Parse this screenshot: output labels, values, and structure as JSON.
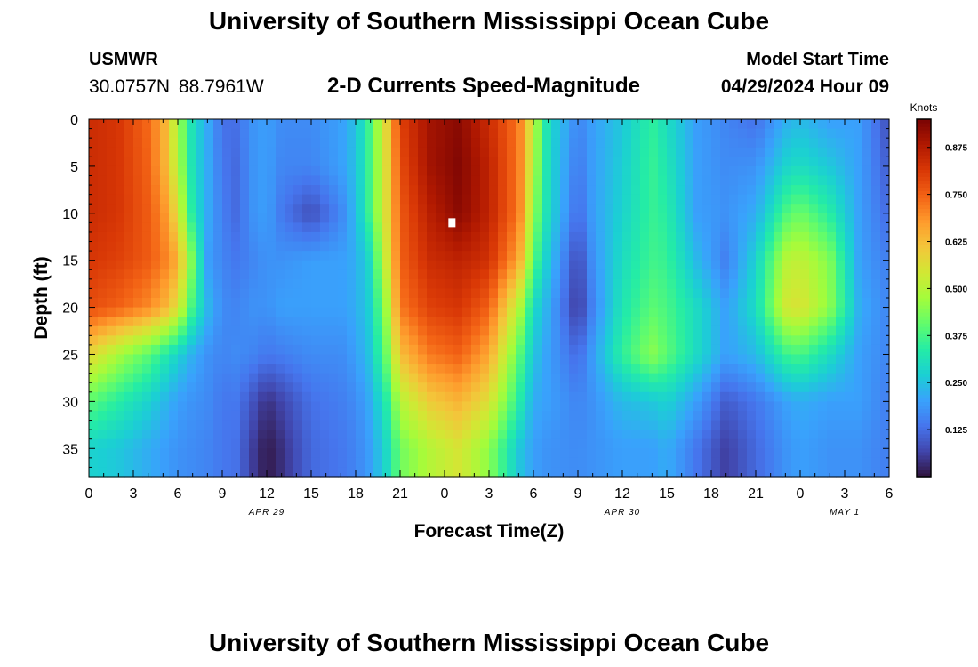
{
  "header": {
    "title": "University of Southern Mississippi Ocean Cube",
    "station": "USMWR",
    "coords": "30.0757N  88.7961W",
    "subtitle": "2-D Currents Speed-Magnitude",
    "model_start_label": "Model Start Time",
    "model_start_time": "04/29/2024 Hour 09"
  },
  "footer": {
    "title": "University of Southern Mississippi Ocean Cube"
  },
  "chart_data": {
    "type": "heatmap",
    "xlabel": "Forecast Time(Z)",
    "ylabel": "Depth (ft)",
    "x_range_hours": [
      0,
      54
    ],
    "x_tick_labels": [
      "0",
      "3",
      "6",
      "9",
      "12",
      "15",
      "18",
      "21",
      "0",
      "3",
      "6",
      "9",
      "12",
      "15",
      "18",
      "21",
      "0",
      "3",
      "6"
    ],
    "x_date_labels": [
      {
        "label": "APR 29",
        "hour": 12
      },
      {
        "label": "APR 30",
        "hour": 36
      },
      {
        "label": "MAY 1",
        "hour": 51
      }
    ],
    "y_range": [
      0,
      38
    ],
    "y_ticks": [
      0,
      5,
      10,
      15,
      20,
      25,
      30,
      35
    ],
    "colorbar": {
      "title": "Knots",
      "range": [
        0,
        0.95
      ],
      "ticks": [
        "0.125",
        "0.250",
        "0.375",
        "0.500",
        "0.625",
        "0.750",
        "0.875"
      ],
      "colors": [
        "#30123b",
        "#4145ab",
        "#4675ed",
        "#39a2fc",
        "#1bcfd4",
        "#24eca6",
        "#61fc6c",
        "#a4fc3b",
        "#d1e834",
        "#f3c63a",
        "#fe9b2d",
        "#f36315",
        "#d93806",
        "#b11901",
        "#7a0403"
      ]
    },
    "marker": {
      "hour": 24.5,
      "depth": 11
    },
    "profiles": [
      {
        "hour": 0,
        "values": [
          0.84,
          0.84,
          0.84,
          0.82,
          0.78,
          0.58,
          0.4,
          0.28
        ]
      },
      {
        "hour": 2,
        "values": [
          0.82,
          0.82,
          0.82,
          0.8,
          0.75,
          0.48,
          0.34,
          0.26
        ]
      },
      {
        "hour": 4,
        "values": [
          0.74,
          0.75,
          0.76,
          0.76,
          0.7,
          0.4,
          0.28,
          0.22
        ]
      },
      {
        "hour": 5,
        "values": [
          0.66,
          0.66,
          0.7,
          0.72,
          0.65,
          0.34,
          0.24,
          0.2
        ]
      },
      {
        "hour": 6,
        "values": [
          0.48,
          0.5,
          0.56,
          0.65,
          0.56,
          0.28,
          0.2,
          0.18
        ]
      },
      {
        "hour": 7,
        "values": [
          0.3,
          0.3,
          0.32,
          0.42,
          0.36,
          0.22,
          0.18,
          0.17
        ]
      },
      {
        "hour": 8,
        "values": [
          0.22,
          0.22,
          0.22,
          0.2,
          0.24,
          0.18,
          0.17,
          0.16
        ]
      },
      {
        "hour": 9,
        "values": [
          0.13,
          0.14,
          0.15,
          0.16,
          0.17,
          0.16,
          0.14,
          0.14
        ]
      },
      {
        "hour": 10,
        "values": [
          0.13,
          0.12,
          0.12,
          0.14,
          0.16,
          0.17,
          0.14,
          0.13
        ]
      },
      {
        "hour": 11,
        "values": [
          0.18,
          0.18,
          0.18,
          0.16,
          0.18,
          0.16,
          0.09,
          0.06
        ]
      },
      {
        "hour": 12,
        "values": [
          0.2,
          0.2,
          0.2,
          0.18,
          0.18,
          0.14,
          0.04,
          0.01
        ]
      },
      {
        "hour": 13,
        "values": [
          0.17,
          0.16,
          0.14,
          0.18,
          0.2,
          0.15,
          0.07,
          0.04
        ]
      },
      {
        "hour": 15,
        "values": [
          0.17,
          0.16,
          0.08,
          0.2,
          0.2,
          0.17,
          0.13,
          0.12
        ]
      },
      {
        "hour": 17,
        "values": [
          0.2,
          0.2,
          0.16,
          0.2,
          0.2,
          0.17,
          0.15,
          0.14
        ]
      },
      {
        "hour": 18,
        "values": [
          0.25,
          0.25,
          0.24,
          0.22,
          0.22,
          0.2,
          0.17,
          0.16
        ]
      },
      {
        "hour": 19,
        "values": [
          0.38,
          0.38,
          0.38,
          0.3,
          0.28,
          0.26,
          0.22,
          0.2
        ]
      },
      {
        "hour": 20,
        "values": [
          0.56,
          0.55,
          0.55,
          0.52,
          0.45,
          0.4,
          0.32,
          0.28
        ]
      },
      {
        "hour": 21,
        "values": [
          0.8,
          0.78,
          0.76,
          0.75,
          0.72,
          0.62,
          0.5,
          0.42
        ]
      },
      {
        "hour": 23,
        "values": [
          0.9,
          0.9,
          0.87,
          0.84,
          0.8,
          0.72,
          0.6,
          0.5
        ]
      },
      {
        "hour": 25,
        "values": [
          0.93,
          0.94,
          0.93,
          0.86,
          0.82,
          0.75,
          0.64,
          0.55
        ]
      },
      {
        "hour": 27,
        "values": [
          0.84,
          0.86,
          0.86,
          0.83,
          0.75,
          0.66,
          0.56,
          0.45
        ]
      },
      {
        "hour": 29,
        "values": [
          0.72,
          0.72,
          0.72,
          0.66,
          0.5,
          0.4,
          0.34,
          0.26
        ]
      },
      {
        "hour": 30,
        "values": [
          0.52,
          0.5,
          0.46,
          0.4,
          0.3,
          0.26,
          0.22,
          0.2
        ]
      },
      {
        "hour": 31,
        "values": [
          0.3,
          0.3,
          0.3,
          0.26,
          0.22,
          0.2,
          0.2,
          0.18
        ]
      },
      {
        "hour": 33,
        "values": [
          0.16,
          0.14,
          0.12,
          0.07,
          0.05,
          0.12,
          0.16,
          0.17
        ]
      },
      {
        "hour": 34,
        "values": [
          0.2,
          0.2,
          0.2,
          0.18,
          0.16,
          0.2,
          0.18,
          0.18
        ]
      },
      {
        "hour": 36,
        "values": [
          0.26,
          0.27,
          0.28,
          0.3,
          0.32,
          0.35,
          0.24,
          0.2
        ]
      },
      {
        "hour": 38,
        "values": [
          0.35,
          0.36,
          0.36,
          0.37,
          0.4,
          0.45,
          0.26,
          0.2
        ]
      },
      {
        "hour": 39,
        "values": [
          0.3,
          0.32,
          0.34,
          0.36,
          0.38,
          0.4,
          0.28,
          0.22
        ]
      },
      {
        "hour": 41,
        "values": [
          0.2,
          0.2,
          0.2,
          0.24,
          0.3,
          0.3,
          0.2,
          0.14
        ]
      },
      {
        "hour": 43,
        "values": [
          0.16,
          0.17,
          0.18,
          0.15,
          0.2,
          0.2,
          0.1,
          0.06
        ]
      },
      {
        "hour": 45,
        "values": [
          0.13,
          0.18,
          0.22,
          0.28,
          0.3,
          0.24,
          0.14,
          0.12
        ]
      },
      {
        "hour": 47,
        "values": [
          0.22,
          0.28,
          0.38,
          0.5,
          0.54,
          0.36,
          0.2,
          0.18
        ]
      },
      {
        "hour": 48,
        "values": [
          0.24,
          0.3,
          0.42,
          0.52,
          0.56,
          0.38,
          0.22,
          0.2
        ]
      },
      {
        "hour": 50,
        "values": [
          0.2,
          0.26,
          0.34,
          0.44,
          0.45,
          0.3,
          0.2,
          0.18
        ]
      },
      {
        "hour": 52,
        "values": [
          0.2,
          0.2,
          0.2,
          0.2,
          0.22,
          0.2,
          0.2,
          0.18
        ]
      },
      {
        "hour": 54,
        "values": [
          0.08,
          0.1,
          0.12,
          0.15,
          0.16,
          0.16,
          0.15,
          0.15
        ]
      }
    ]
  }
}
